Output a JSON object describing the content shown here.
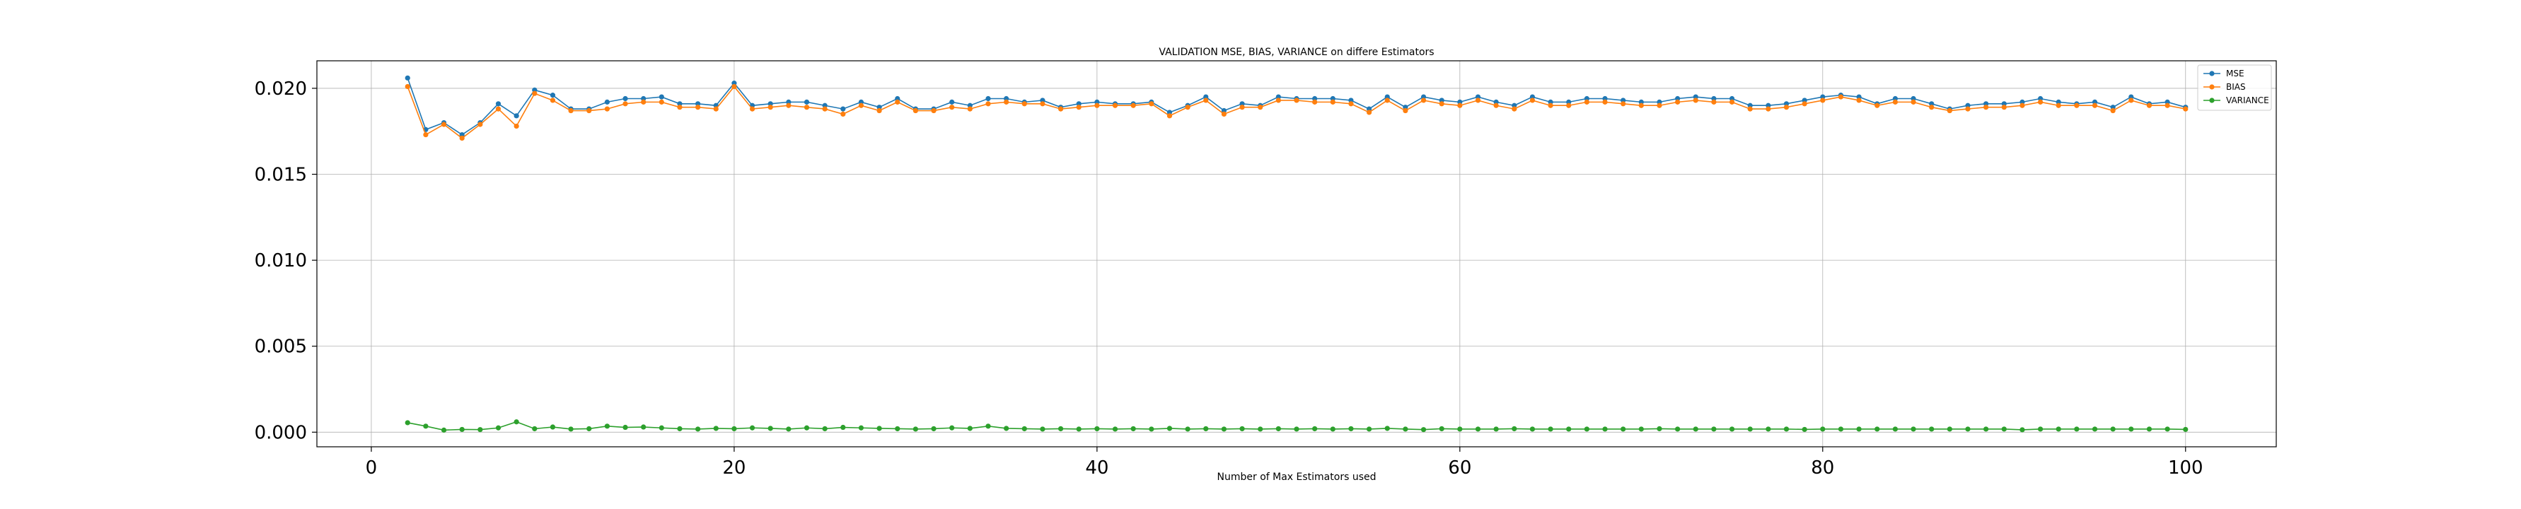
{
  "chart_data": {
    "type": "line",
    "title": "VALIDATION MSE, BIAS, VARIANCE on differe Estimators",
    "xlabel": "Number of Max Estimators used",
    "ylabel": "",
    "xlim": [
      -3,
      105
    ],
    "ylim": [
      -0.00085,
      0.0216
    ],
    "xticks": [
      0,
      20,
      40,
      60,
      80,
      100
    ],
    "xtick_labels": [
      "0",
      "20",
      "40",
      "60",
      "80",
      "100"
    ],
    "yticks": [
      0.0,
      0.005,
      0.01,
      0.015,
      0.02
    ],
    "ytick_labels": [
      "0.000",
      "0.005",
      "0.010",
      "0.015",
      "0.020"
    ],
    "grid": true,
    "legend_position": "top-right",
    "x": [
      2,
      3,
      4,
      5,
      6,
      7,
      8,
      9,
      10,
      11,
      12,
      13,
      14,
      15,
      16,
      17,
      18,
      19,
      20,
      21,
      22,
      23,
      24,
      25,
      26,
      27,
      28,
      29,
      30,
      31,
      32,
      33,
      34,
      35,
      36,
      37,
      38,
      39,
      40,
      41,
      42,
      43,
      44,
      45,
      46,
      47,
      48,
      49,
      50,
      51,
      52,
      53,
      54,
      55,
      56,
      57,
      58,
      59,
      60,
      61,
      62,
      63,
      64,
      65,
      66,
      67,
      68,
      69,
      70,
      71,
      72,
      73,
      74,
      75,
      76,
      77,
      78,
      79,
      80,
      81,
      82,
      83,
      84,
      85,
      86,
      87,
      88,
      89,
      90,
      91,
      92,
      93,
      94,
      95,
      96,
      97,
      98,
      99,
      100
    ],
    "series": [
      {
        "name": "MSE",
        "color": "#1f77b4",
        "marker": "circle",
        "values": [
          0.0206,
          0.0176,
          0.018,
          0.0173,
          0.018,
          0.0191,
          0.0184,
          0.0199,
          0.0196,
          0.0188,
          0.0188,
          0.0192,
          0.0194,
          0.0194,
          0.0195,
          0.0191,
          0.0191,
          0.019,
          0.0203,
          0.019,
          0.0191,
          0.0192,
          0.0192,
          0.019,
          0.0188,
          0.0192,
          0.0189,
          0.0194,
          0.0188,
          0.0188,
          0.0192,
          0.019,
          0.0194,
          0.0194,
          0.0192,
          0.0193,
          0.0189,
          0.0191,
          0.0192,
          0.0191,
          0.0191,
          0.0192,
          0.0186,
          0.019,
          0.0195,
          0.0187,
          0.0191,
          0.019,
          0.0195,
          0.0194,
          0.0194,
          0.0194,
          0.0193,
          0.0188,
          0.0195,
          0.0189,
          0.0195,
          0.0193,
          0.0192,
          0.0195,
          0.0192,
          0.019,
          0.0195,
          0.0192,
          0.0192,
          0.0194,
          0.0194,
          0.0193,
          0.0192,
          0.0192,
          0.0194,
          0.0195,
          0.0194,
          0.0194,
          0.019,
          0.019,
          0.0191,
          0.0193,
          0.0195,
          0.0196,
          0.0195,
          0.0191,
          0.0194,
          0.0194,
          0.0191,
          0.0188,
          0.019,
          0.0191,
          0.0191,
          0.0192,
          0.0194,
          0.0192,
          0.0191,
          0.0192,
          0.0189,
          0.0195,
          0.0191,
          0.0192,
          0.0189
        ]
      },
      {
        "name": "BIAS",
        "color": "#ff7f0e",
        "marker": "circle",
        "values": [
          0.0201,
          0.0173,
          0.0179,
          0.0171,
          0.0179,
          0.0188,
          0.0178,
          0.0197,
          0.0193,
          0.0187,
          0.0187,
          0.0188,
          0.0191,
          0.0192,
          0.0192,
          0.0189,
          0.0189,
          0.0188,
          0.0201,
          0.0188,
          0.0189,
          0.019,
          0.0189,
          0.0188,
          0.0185,
          0.019,
          0.0187,
          0.0192,
          0.0187,
          0.0187,
          0.0189,
          0.0188,
          0.0191,
          0.0192,
          0.0191,
          0.0191,
          0.0188,
          0.0189,
          0.019,
          0.019,
          0.019,
          0.0191,
          0.0184,
          0.0189,
          0.0193,
          0.0185,
          0.0189,
          0.0189,
          0.0193,
          0.0193,
          0.0192,
          0.0192,
          0.0191,
          0.0186,
          0.0193,
          0.0187,
          0.0193,
          0.0191,
          0.019,
          0.0193,
          0.019,
          0.0188,
          0.0193,
          0.019,
          0.019,
          0.0192,
          0.0192,
          0.0191,
          0.019,
          0.019,
          0.0192,
          0.0193,
          0.0192,
          0.0192,
          0.0188,
          0.0188,
          0.0189,
          0.0191,
          0.0193,
          0.0195,
          0.0193,
          0.019,
          0.0192,
          0.0192,
          0.0189,
          0.0187,
          0.0188,
          0.0189,
          0.0189,
          0.019,
          0.0192,
          0.019,
          0.019,
          0.019,
          0.0187,
          0.0193,
          0.019,
          0.019,
          0.0188
        ]
      },
      {
        "name": "VARIANCE",
        "color": "#2ca02c",
        "marker": "circle",
        "values": [
          0.00055,
          0.00035,
          0.00012,
          0.00016,
          0.00015,
          0.00025,
          0.0006,
          0.0002,
          0.0003,
          0.00018,
          0.0002,
          0.00035,
          0.00028,
          0.0003,
          0.00025,
          0.0002,
          0.00018,
          0.00022,
          0.0002,
          0.00025,
          0.00022,
          0.00018,
          0.00025,
          0.0002,
          0.00028,
          0.00025,
          0.00022,
          0.0002,
          0.00018,
          0.0002,
          0.00025,
          0.00022,
          0.00035,
          0.00022,
          0.0002,
          0.00018,
          0.0002,
          0.00018,
          0.0002,
          0.00018,
          0.0002,
          0.00018,
          0.00022,
          0.00018,
          0.0002,
          0.00018,
          0.0002,
          0.00018,
          0.0002,
          0.00018,
          0.0002,
          0.00018,
          0.0002,
          0.00018,
          0.00022,
          0.00018,
          0.00015,
          0.0002,
          0.00018,
          0.00018,
          0.00018,
          0.0002,
          0.00018,
          0.00018,
          0.00018,
          0.00018,
          0.00018,
          0.00018,
          0.00018,
          0.0002,
          0.00018,
          0.00018,
          0.00018,
          0.00018,
          0.00018,
          0.00018,
          0.00018,
          0.00016,
          0.00018,
          0.00018,
          0.00018,
          0.00018,
          0.00018,
          0.00018,
          0.00018,
          0.00018,
          0.00018,
          0.00018,
          0.00018,
          0.00014,
          0.00018,
          0.00018,
          0.00018,
          0.00018,
          0.00018,
          0.00018,
          0.00018,
          0.00018,
          0.00016
        ]
      }
    ]
  }
}
